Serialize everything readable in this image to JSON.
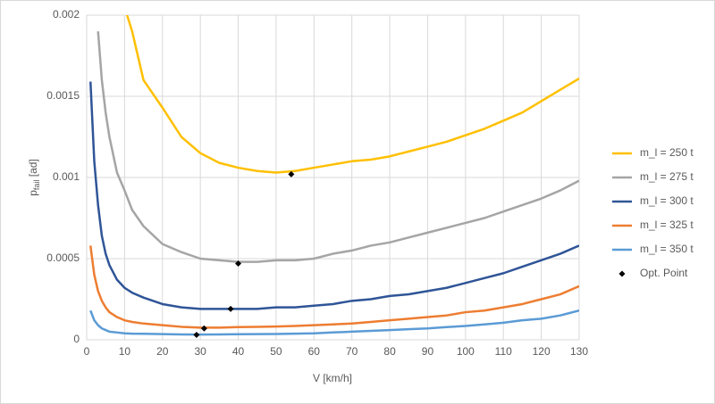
{
  "chart_data": {
    "type": "line",
    "x_label": "V [km/h]",
    "y_label": {
      "base": "p",
      "sub": "fail",
      "rest": " [ad]"
    },
    "x": [
      1,
      2,
      3,
      4,
      5,
      6,
      8,
      10,
      12,
      15,
      20,
      25,
      30,
      35,
      40,
      45,
      50,
      55,
      60,
      65,
      70,
      75,
      80,
      85,
      90,
      95,
      100,
      105,
      110,
      115,
      120,
      125,
      130
    ],
    "series": [
      {
        "name": "m_l = 250 t",
        "color": "#ffc000",
        "values": [
          null,
          null,
          null,
          null,
          null,
          null,
          null,
          0.00205,
          0.0019,
          0.0016,
          0.00143,
          0.00125,
          0.00115,
          0.00109,
          0.00106,
          0.00104,
          0.00103,
          0.00104,
          0.00106,
          0.00108,
          0.0011,
          0.00111,
          0.00113,
          0.00116,
          0.00119,
          0.00122,
          0.00126,
          0.0013,
          0.00135,
          0.0014,
          0.00147,
          0.00154,
          0.00161
        ]
      },
      {
        "name": "m_l = 275 t",
        "color": "#a5a5a5",
        "values": [
          null,
          null,
          0.0019,
          0.0016,
          0.0014,
          0.00125,
          0.00103,
          0.00092,
          0.0008,
          0.0007,
          0.00059,
          0.00054,
          0.0005,
          0.00049,
          0.00048,
          0.00048,
          0.00049,
          0.00049,
          0.0005,
          0.00053,
          0.00055,
          0.00058,
          0.0006,
          0.00063,
          0.00066,
          0.00069,
          0.00072,
          0.00075,
          0.00079,
          0.00083,
          0.00087,
          0.00092,
          0.00098
        ]
      },
      {
        "name": "m_l = 300 t",
        "color": "#2f5597",
        "values": [
          0.00159,
          0.0011,
          0.00083,
          0.00064,
          0.00053,
          0.00046,
          0.00037,
          0.00032,
          0.00029,
          0.00026,
          0.00022,
          0.0002,
          0.00019,
          0.00019,
          0.00019,
          0.00019,
          0.0002,
          0.0002,
          0.00021,
          0.00022,
          0.00024,
          0.00025,
          0.00027,
          0.00028,
          0.0003,
          0.00032,
          0.00035,
          0.00038,
          0.00041,
          0.00045,
          0.00049,
          0.00053,
          0.00058
        ]
      },
      {
        "name": "m_l = 325 t",
        "color": "#ed7d31",
        "values": [
          0.00058,
          0.0004,
          0.0003,
          0.00024,
          0.0002,
          0.00017,
          0.00014,
          0.00012,
          0.00011,
          0.0001,
          9e-05,
          8e-05,
          7.5e-05,
          7.5e-05,
          7.8e-05,
          8e-05,
          8.2e-05,
          8.5e-05,
          9e-05,
          9.5e-05,
          0.0001,
          0.00011,
          0.00012,
          0.00013,
          0.00014,
          0.00015,
          0.00017,
          0.00018,
          0.0002,
          0.00022,
          0.00025,
          0.00028,
          0.00033
        ]
      },
      {
        "name": "m_l = 350 t",
        "color": "#5b9bd5",
        "values": [
          0.00018,
          0.00012,
          9e-05,
          7e-05,
          6e-05,
          5e-05,
          4.5e-05,
          4e-05,
          3.8e-05,
          3.7e-05,
          3.5e-05,
          3.3e-05,
          3.2e-05,
          3.3e-05,
          3.4e-05,
          3.5e-05,
          3.6e-05,
          3.8e-05,
          4e-05,
          4.5e-05,
          5e-05,
          5.5e-05,
          6e-05,
          6.5e-05,
          7e-05,
          7.8e-05,
          8.5e-05,
          9.5e-05,
          0.000105,
          0.00012,
          0.00013,
          0.00015,
          0.00018
        ]
      }
    ],
    "points": {
      "name": "Opt. Point",
      "color": "#000000",
      "x": [
        54,
        40,
        38,
        31,
        29
      ],
      "values": [
        0.00102,
        0.00047,
        0.00019,
        7e-05,
        3e-05
      ]
    },
    "xlim": [
      0,
      130
    ],
    "xticks": [
      0,
      10,
      20,
      30,
      40,
      50,
      60,
      70,
      80,
      90,
      100,
      110,
      120,
      130
    ],
    "ylim": [
      0,
      0.002
    ],
    "yticks": [
      0,
      0.0005,
      0.001,
      0.0015,
      0.002
    ],
    "grid": true,
    "legend": "right"
  }
}
